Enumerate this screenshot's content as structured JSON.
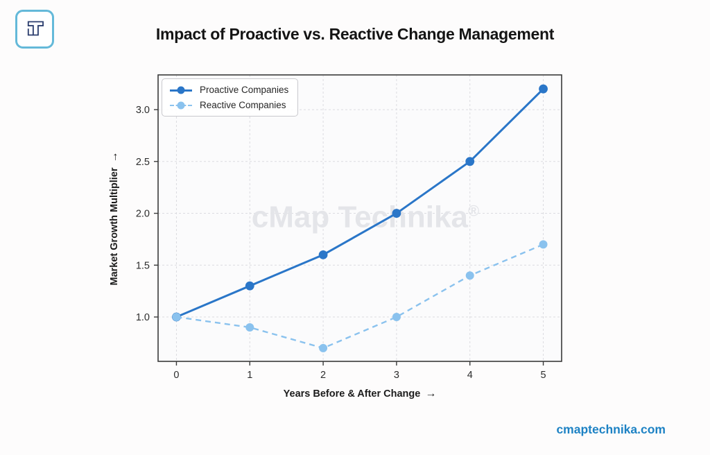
{
  "header": {
    "title": "Impact of Proactive vs. Reactive Change Management"
  },
  "branding": {
    "logo_icon": "cmap-technika-logo",
    "watermark_text": "cMap Technika",
    "watermark_reg": "®",
    "website": "cmaptechnika.com"
  },
  "axes": {
    "xlabel": "Years Before & After Change",
    "xlabel_arrow": "→",
    "ylabel": "Market Growth Multiplier",
    "ylabel_arrow": "→"
  },
  "chart_data": {
    "type": "line",
    "title": "Impact of Proactive vs. Reactive Change Management",
    "xlabel": "Years Before & After Change",
    "ylabel": "Market Growth Multiplier",
    "x": [
      0,
      1,
      2,
      3,
      4,
      5
    ],
    "x_tick_labels": [
      "0",
      "1",
      "2",
      "3",
      "4",
      "5"
    ],
    "y_tick_values": [
      1.0,
      1.5,
      2.0,
      2.5,
      3.0
    ],
    "y_tick_labels": [
      "1.0",
      "1.5",
      "2.0",
      "2.5",
      "3.0"
    ],
    "xlim": [
      -0.25,
      5.25
    ],
    "ylim": [
      0.572,
      3.335
    ],
    "grid": true,
    "grid_style": "dashed",
    "legend_position": "upper left",
    "series": [
      {
        "name": "Proactive Companies",
        "values": [
          1.0,
          1.3,
          1.6,
          2.0,
          2.5,
          3.2
        ],
        "color": "#2a76c8",
        "style": "solid",
        "marker": "circle"
      },
      {
        "name": "Reactive Companies",
        "values": [
          1.0,
          0.9,
          0.7,
          1.0,
          1.4,
          1.7
        ],
        "color": "#8ac2ee",
        "style": "dashed",
        "marker": "circle"
      }
    ]
  },
  "colors": {
    "plot_background": "#fbfbfc",
    "page_background": "#fdfcfc",
    "spine": "#3a3a3a",
    "gridline": "#dbdbe0",
    "tick_label": "#2d2d2d",
    "watermark": "#e4e5e9",
    "link": "#1d82c4",
    "logo_border": "#64b9d9",
    "logo_glyph": "#2c3e6e"
  }
}
